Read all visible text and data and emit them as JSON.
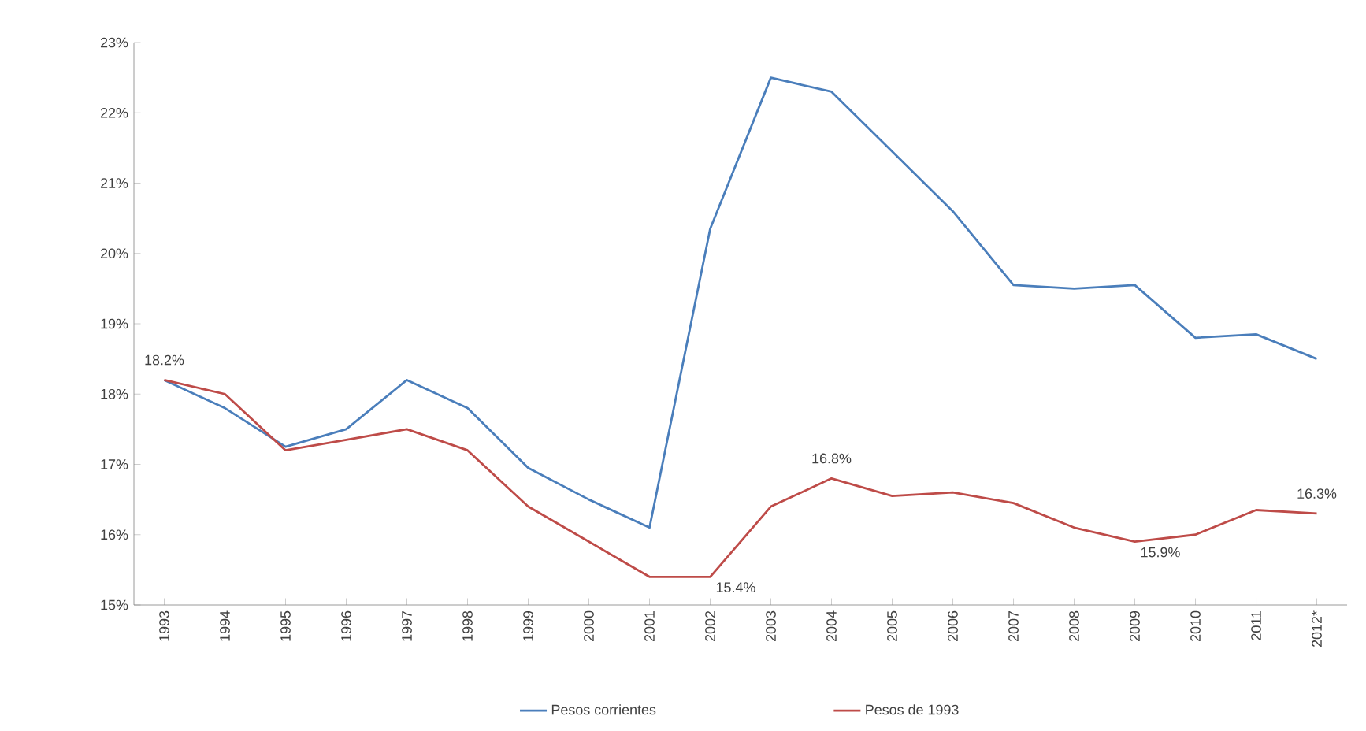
{
  "chart_data": {
    "type": "line",
    "categories": [
      "1993",
      "1994",
      "1995",
      "1996",
      "1997",
      "1998",
      "1999",
      "2000",
      "2001",
      "2002",
      "2003",
      "2004",
      "2005",
      "2006",
      "2007",
      "2008",
      "2009",
      "2010",
      "2011",
      "2012*"
    ],
    "series": [
      {
        "name": "Pesos corrientes",
        "color": "#4a7ebb",
        "values": [
          18.2,
          17.8,
          17.25,
          17.5,
          18.2,
          17.8,
          16.95,
          16.5,
          16.1,
          20.35,
          22.5,
          22.3,
          21.45,
          20.6,
          19.55,
          19.5,
          19.55,
          18.8,
          18.85,
          18.5
        ]
      },
      {
        "name": "Pesos de 1993",
        "color": "#be4b48",
        "values": [
          18.2,
          18.0,
          17.2,
          17.35,
          17.5,
          17.2,
          16.4,
          15.9,
          15.4,
          15.4,
          16.4,
          16.8,
          16.55,
          16.6,
          16.45,
          16.1,
          15.9,
          16.0,
          16.35,
          16.3
        ]
      }
    ],
    "ylim": [
      15,
      23
    ],
    "yticks": [
      {
        "value": 15,
        "label": "15%"
      },
      {
        "value": 16,
        "label": "16%"
      },
      {
        "value": 17,
        "label": "17%"
      },
      {
        "value": 18,
        "label": "18%"
      },
      {
        "value": 19,
        "label": "19%"
      },
      {
        "value": 20,
        "label": "20%"
      },
      {
        "value": 21,
        "label": "21%"
      },
      {
        "value": 22,
        "label": "22%"
      },
      {
        "value": 23,
        "label": "23%"
      }
    ],
    "annotations": [
      {
        "text": "18.2%",
        "x": "1993",
        "y": 18.2
      },
      {
        "text": "15.4%",
        "x": "2002",
        "y": 15.4
      },
      {
        "text": "16.8%",
        "x": "2004",
        "y": 16.8
      },
      {
        "text": "15.9%",
        "x": "2009",
        "y": 15.9
      },
      {
        "text": "16.3%",
        "x": "2012*",
        "y": 16.3
      }
    ],
    "legend": "bottom",
    "grid": false,
    "marker": "none",
    "line_style": "solid"
  }
}
